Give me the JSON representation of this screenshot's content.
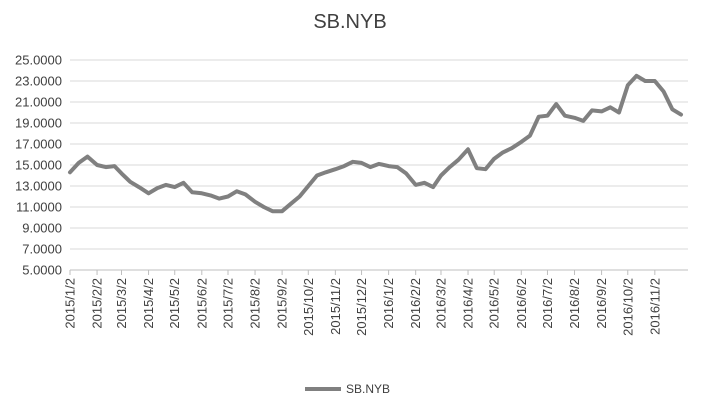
{
  "chart_data": {
    "type": "line",
    "title": "SB.NYB",
    "xlabel": "",
    "ylabel": "",
    "ylim": [
      5,
      25
    ],
    "yticks": [
      "25.0000",
      "23.0000",
      "21.0000",
      "19.0000",
      "17.0000",
      "15.0000",
      "13.0000",
      "11.0000",
      "9.0000",
      "7.0000",
      "5.0000"
    ],
    "xticks": [
      "2015/1/2",
      "2015/2/2",
      "2015/3/2",
      "2015/4/2",
      "2015/5/2",
      "2015/6/2",
      "2015/7/2",
      "2015/8/2",
      "2015/9/2",
      "2015/10/2",
      "2015/11/2",
      "2015/12/2",
      "2016/1/2",
      "2016/2/2",
      "2016/3/2",
      "2016/4/2",
      "2016/5/2",
      "2016/6/2",
      "2016/7/2",
      "2016/8/2",
      "2016/9/2",
      "2016/10/2",
      "2016/11/2"
    ],
    "grid": true,
    "legend": "bottom",
    "color": "#808080",
    "series": [
      {
        "name": "SB.NYB",
        "x": [
          "2015-01-02",
          "2015-01-12",
          "2015-01-22",
          "2015-02-02",
          "2015-02-12",
          "2015-02-22",
          "2015-03-02",
          "2015-03-12",
          "2015-03-22",
          "2015-04-02",
          "2015-04-12",
          "2015-04-22",
          "2015-05-02",
          "2015-05-12",
          "2015-05-22",
          "2015-06-02",
          "2015-06-12",
          "2015-06-22",
          "2015-07-02",
          "2015-07-12",
          "2015-07-22",
          "2015-08-02",
          "2015-08-12",
          "2015-08-22",
          "2015-09-02",
          "2015-09-12",
          "2015-09-22",
          "2015-10-02",
          "2015-10-12",
          "2015-10-22",
          "2015-11-02",
          "2015-11-12",
          "2015-11-22",
          "2015-12-02",
          "2015-12-12",
          "2015-12-22",
          "2016-01-02",
          "2016-01-12",
          "2016-01-22",
          "2016-02-02",
          "2016-02-12",
          "2016-02-22",
          "2016-03-02",
          "2016-03-12",
          "2016-03-22",
          "2016-04-02",
          "2016-04-12",
          "2016-04-22",
          "2016-05-02",
          "2016-05-12",
          "2016-05-22",
          "2016-06-02",
          "2016-06-12",
          "2016-06-22",
          "2016-07-02",
          "2016-07-12",
          "2016-07-22",
          "2016-08-02",
          "2016-08-12",
          "2016-08-22",
          "2016-09-02",
          "2016-09-12",
          "2016-09-22",
          "2016-10-02",
          "2016-10-12",
          "2016-10-22",
          "2016-11-02",
          "2016-11-12",
          "2016-11-22",
          "2016-12-02"
        ],
        "values": [
          14.3,
          15.2,
          15.8,
          15.0,
          14.8,
          14.9,
          14.2,
          13.4,
          12.9,
          12.3,
          12.8,
          13.1,
          12.9,
          13.3,
          12.4,
          12.3,
          12.1,
          11.8,
          12.0,
          12.5,
          12.2,
          11.5,
          11.0,
          10.6,
          10.6,
          11.3,
          12.0,
          13.0,
          14.0,
          14.3,
          14.6,
          14.9,
          15.3,
          15.2,
          14.8,
          15.1,
          14.9,
          14.8,
          14.2,
          13.1,
          13.3,
          12.9,
          14.0,
          14.8,
          15.5,
          16.5,
          14.7,
          14.6,
          15.6,
          16.2,
          16.6,
          17.2,
          17.8,
          19.6,
          19.7,
          20.8,
          19.7,
          19.5,
          19.2,
          20.2,
          20.1,
          20.5,
          20.0,
          22.6,
          23.5,
          23.0,
          23.0,
          22.0,
          20.3,
          19.8
        ]
      }
    ]
  }
}
